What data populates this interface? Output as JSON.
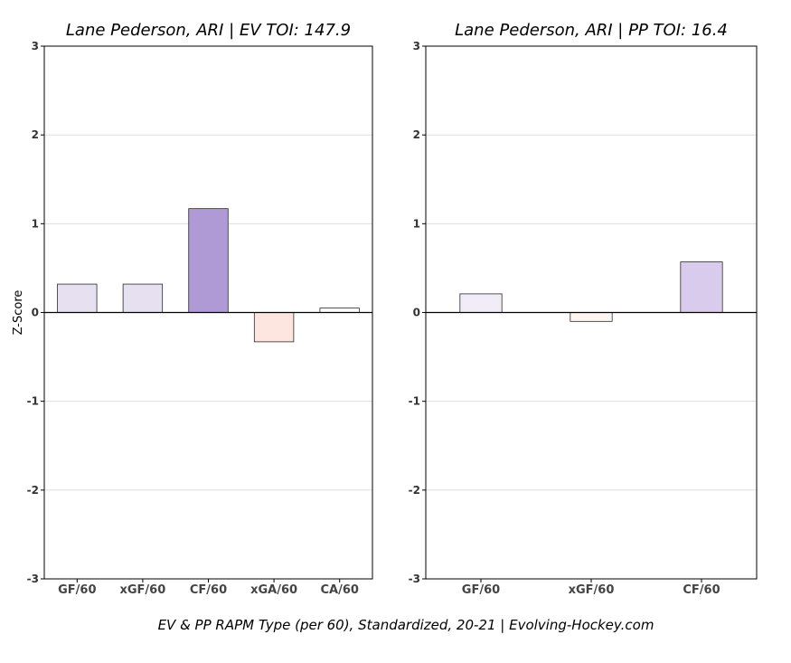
{
  "caption": "EV & PP RAPM Type (per 60), Standardized, 20-21    |    Evolving-Hockey.com",
  "chart_data": [
    {
      "type": "bar",
      "title": "Lane Pederson, ARI  |  EV TOI: 147.9",
      "ylabel": "Z-Score",
      "xlabel": "",
      "ylim": [
        -3,
        3
      ],
      "yticks": [
        -3,
        -2,
        -1,
        0,
        1,
        2,
        3
      ],
      "grid": true,
      "categories": [
        "GF/60",
        "xGF/60",
        "CF/60",
        "xGA/60",
        "CA/60"
      ],
      "values": [
        0.32,
        0.32,
        1.17,
        -0.33,
        0.05
      ],
      "colors": [
        "#e6e0f1",
        "#e6e0f1",
        "#b09ad6",
        "#fde6e0",
        "#ffffff"
      ]
    },
    {
      "type": "bar",
      "title": "Lane Pederson, ARI  |  PP TOI: 16.4",
      "ylabel": "",
      "xlabel": "",
      "ylim": [
        -3,
        3
      ],
      "yticks": [
        -3,
        -2,
        -1,
        0,
        1,
        2,
        3
      ],
      "grid": true,
      "categories": [
        "GF/60",
        "xGF/60",
        "CF/60"
      ],
      "values": [
        0.21,
        -0.1,
        0.57
      ],
      "colors": [
        "#f1ecf8",
        "#fff5f2",
        "#d9cbeb"
      ]
    }
  ]
}
